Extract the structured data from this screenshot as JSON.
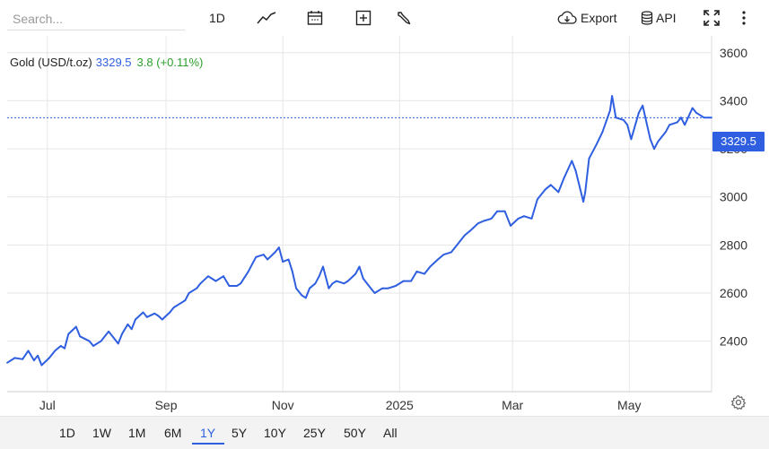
{
  "toolbar": {
    "search_placeholder": "Search...",
    "interval_label": "1D",
    "export_label": "Export",
    "api_label": "API",
    "icons": [
      "line-chart-icon",
      "calendar-icon",
      "plus-box-icon",
      "wrench-icon",
      "cloud-download-icon",
      "database-icon",
      "fullscreen-icon",
      "more-vert-icon"
    ]
  },
  "legend": {
    "name": "Gold (USD/t.oz)",
    "price": "3329.5",
    "change": "3.8 (+0.11%)"
  },
  "price_tag": "3329.5",
  "ranges": [
    "1D",
    "1W",
    "1M",
    "6M",
    "1Y",
    "5Y",
    "10Y",
    "25Y",
    "50Y",
    "All"
  ],
  "active_range": "1Y",
  "colors": {
    "line": "#2f5fe0",
    "accent": "#2f5fe0",
    "positive": "#2ca02c"
  },
  "chart_data": {
    "type": "line",
    "title": "",
    "xlabel": "",
    "ylabel": "",
    "x_tick_labels": [
      "Jul",
      "Sep",
      "Nov",
      "2025",
      "Mar",
      "May"
    ],
    "x_ticks": [
      "2024-07-01",
      "2024-09-01",
      "2024-11-01",
      "2025-01-01",
      "2025-03-01",
      "2025-05-01"
    ],
    "xlim": [
      "2024-06-10",
      "2025-06-13"
    ],
    "y_ticks": [
      2400,
      2600,
      2800,
      3000,
      3200,
      3400,
      3600
    ],
    "ylim": [
      2190,
      3670
    ],
    "grid": true,
    "current_value": 3329.5,
    "series": [
      {
        "x": [
          "2024-06-10",
          "2024-06-14",
          "2024-06-18",
          "2024-06-21",
          "2024-06-24",
          "2024-06-26",
          "2024-06-28",
          "2024-07-02",
          "2024-07-05",
          "2024-07-08",
          "2024-07-10",
          "2024-07-12",
          "2024-07-16",
          "2024-07-18",
          "2024-07-23",
          "2024-07-25",
          "2024-07-29",
          "2024-07-31",
          "2024-08-02",
          "2024-08-05",
          "2024-08-07",
          "2024-08-09",
          "2024-08-12",
          "2024-08-14",
          "2024-08-16",
          "2024-08-20",
          "2024-08-22",
          "2024-08-26",
          "2024-08-28",
          "2024-08-30",
          "2024-09-03",
          "2024-09-05",
          "2024-09-09",
          "2024-09-11",
          "2024-09-13",
          "2024-09-17",
          "2024-09-19",
          "2024-09-23",
          "2024-09-25",
          "2024-09-27",
          "2024-10-01",
          "2024-10-04",
          "2024-10-08",
          "2024-10-10",
          "2024-10-14",
          "2024-10-16",
          "2024-10-18",
          "2024-10-22",
          "2024-10-24",
          "2024-10-28",
          "2024-10-30",
          "2024-11-01",
          "2024-11-04",
          "2024-11-06",
          "2024-11-08",
          "2024-11-11",
          "2024-11-13",
          "2024-11-15",
          "2024-11-18",
          "2024-11-20",
          "2024-11-22",
          "2024-11-25",
          "2024-11-27",
          "2024-11-29",
          "2024-12-03",
          "2024-12-05",
          "2024-12-09",
          "2024-12-11",
          "2024-12-13",
          "2024-12-17",
          "2024-12-19",
          "2024-12-23",
          "2024-12-26",
          "2024-12-30",
          "2025-01-03",
          "2025-01-07",
          "2025-01-10",
          "2025-01-14",
          "2025-01-17",
          "2025-01-21",
          "2025-01-24",
          "2025-01-28",
          "2025-01-31",
          "2025-02-04",
          "2025-02-07",
          "2025-02-11",
          "2025-02-14",
          "2025-02-18",
          "2025-02-21",
          "2025-02-25",
          "2025-02-28",
          "2025-03-04",
          "2025-03-07",
          "2025-03-11",
          "2025-03-14",
          "2025-03-18",
          "2025-03-21",
          "2025-03-25",
          "2025-03-28",
          "2025-04-01",
          "2025-04-03",
          "2025-04-07",
          "2025-04-08",
          "2025-04-10",
          "2025-04-14",
          "2025-04-17",
          "2025-04-21",
          "2025-04-22",
          "2025-04-24",
          "2025-04-28",
          "2025-04-30",
          "2025-05-02",
          "2025-05-06",
          "2025-05-08",
          "2025-05-12",
          "2025-05-14",
          "2025-05-16",
          "2025-05-20",
          "2025-05-22",
          "2025-05-26",
          "2025-05-28",
          "2025-05-30",
          "2025-06-03",
          "2025-06-05",
          "2025-06-09",
          "2025-06-13"
        ],
        "values": [
          2310,
          2330,
          2325,
          2360,
          2320,
          2340,
          2300,
          2330,
          2360,
          2380,
          2370,
          2430,
          2460,
          2420,
          2400,
          2380,
          2400,
          2420,
          2440,
          2410,
          2390,
          2430,
          2470,
          2450,
          2490,
          2520,
          2500,
          2515,
          2505,
          2490,
          2520,
          2540,
          2560,
          2570,
          2600,
          2620,
          2640,
          2670,
          2660,
          2650,
          2670,
          2630,
          2630,
          2640,
          2690,
          2720,
          2750,
          2760,
          2740,
          2770,
          2790,
          2730,
          2740,
          2690,
          2620,
          2590,
          2580,
          2620,
          2640,
          2670,
          2710,
          2620,
          2640,
          2650,
          2640,
          2650,
          2680,
          2710,
          2660,
          2620,
          2600,
          2620,
          2620,
          2630,
          2650,
          2650,
          2690,
          2680,
          2710,
          2740,
          2760,
          2770,
          2800,
          2840,
          2860,
          2890,
          2900,
          2910,
          2940,
          2940,
          2880,
          2910,
          2920,
          2910,
          2990,
          3030,
          3050,
          3020,
          3080,
          3150,
          3110,
          2980,
          3020,
          3160,
          3220,
          3270,
          3360,
          3420,
          3330,
          3320,
          3300,
          3240,
          3350,
          3380,
          3240,
          3200,
          3230,
          3270,
          3300,
          3310,
          3330,
          3300,
          3370,
          3350,
          3330,
          3330
        ]
      }
    ]
  }
}
